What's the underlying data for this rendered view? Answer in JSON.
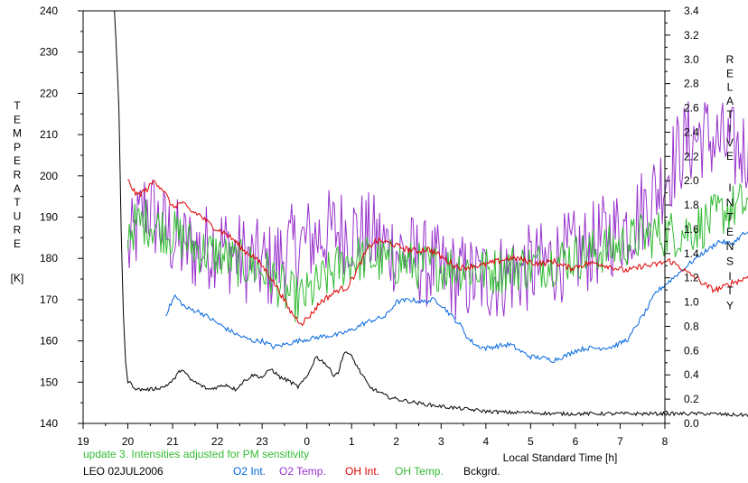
{
  "chart_data": {
    "type": "line",
    "left_axis": {
      "label_letters": [
        "T",
        "E",
        "M",
        "P",
        "E",
        "R",
        "A",
        "T",
        "U",
        "R",
        "E"
      ],
      "unit": "[K]",
      "ylim": [
        140,
        240
      ],
      "ticks": [
        "240",
        "230",
        "220",
        "210",
        "200",
        "190",
        "180",
        "170",
        "160",
        "150",
        "140"
      ]
    },
    "right_axis": {
      "label_letters_1": [
        "R",
        "E",
        "L",
        "A",
        "T",
        "I",
        "V",
        "E"
      ],
      "label_letters_2": [
        "I",
        "N",
        "T",
        "E",
        "N",
        "S",
        "I",
        "T",
        "Y"
      ],
      "ylim": [
        0.0,
        3.4
      ],
      "ticks": [
        "3.4",
        "3.2",
        "3.0",
        "2.8",
        "2.6",
        "2.4",
        "2.2",
        "2.0",
        "1.8",
        "1.6",
        "1.4",
        "1.2",
        "1.0",
        "0.8",
        "0.6",
        "0.4",
        "0.2",
        "0.0"
      ]
    },
    "x_axis": {
      "label": "Local Standard Time [h]",
      "ticks": [
        "19",
        "20",
        "21",
        "22",
        "23",
        "0",
        "1",
        "2",
        "3",
        "4",
        "5",
        "6",
        "7",
        "8"
      ],
      "range_hours_after_19": [
        0,
        13
      ]
    },
    "notes": {
      "update": "update 3. Intensities adjusted for PM sensitivity",
      "station": "LEO 02JUL2006"
    },
    "legend": [
      "O2 Int.",
      "O2 Temp.",
      "OH Int.",
      "OH Temp.",
      "Bckgrd."
    ],
    "series": [
      {
        "name": "O2 Int.",
        "axis": "right",
        "color": "#0066dd",
        "points": [
          [
            20.85,
            0.9
          ],
          [
            21.05,
            1.05
          ],
          [
            21.3,
            0.95
          ],
          [
            21.6,
            0.92
          ],
          [
            21.9,
            0.85
          ],
          [
            22.2,
            0.78
          ],
          [
            22.5,
            0.72
          ],
          [
            22.8,
            0.68
          ],
          [
            23.0,
            0.68
          ],
          [
            23.25,
            0.63
          ],
          [
            23.5,
            0.65
          ],
          [
            23.8,
            0.68
          ],
          [
            24.1,
            0.7
          ],
          [
            24.4,
            0.72
          ],
          [
            24.7,
            0.73
          ],
          [
            25.0,
            0.77
          ],
          [
            25.25,
            0.82
          ],
          [
            25.45,
            0.85
          ],
          [
            25.75,
            0.88
          ],
          [
            26.0,
            1.0
          ],
          [
            26.3,
            1.02
          ],
          [
            26.6,
            1.0
          ],
          [
            26.85,
            1.02
          ],
          [
            27.0,
            0.98
          ],
          [
            27.2,
            0.9
          ],
          [
            27.45,
            0.8
          ],
          [
            27.6,
            0.7
          ],
          [
            27.8,
            0.64
          ],
          [
            28.0,
            0.62
          ],
          [
            28.3,
            0.64
          ],
          [
            28.55,
            0.65
          ],
          [
            28.75,
            0.6
          ],
          [
            29.0,
            0.55
          ],
          [
            29.25,
            0.54
          ],
          [
            29.5,
            0.52
          ],
          [
            29.8,
            0.56
          ],
          [
            30.0,
            0.6
          ],
          [
            30.25,
            0.62
          ],
          [
            30.5,
            0.62
          ],
          [
            30.8,
            0.63
          ],
          [
            31.0,
            0.66
          ],
          [
            31.2,
            0.7
          ],
          [
            31.35,
            0.8
          ],
          [
            31.6,
            0.94
          ],
          [
            31.8,
            1.08
          ],
          [
            32.0,
            1.14
          ],
          [
            32.25,
            1.22
          ],
          [
            32.5,
            1.3
          ],
          [
            32.75,
            1.38
          ],
          [
            33.0,
            1.44
          ],
          [
            33.2,
            1.5
          ],
          [
            33.5,
            1.48
          ],
          [
            33.75,
            1.56
          ],
          [
            34.0,
            1.58
          ],
          [
            34.2,
            1.48
          ],
          [
            34.35,
            1.54
          ],
          [
            34.55,
            1.4
          ]
        ]
      },
      {
        "name": "O2 Temp.",
        "axis": "left",
        "color": "#9933cc",
        "points": [
          [
            20.0,
            181
          ],
          [
            20.4,
            193
          ],
          [
            20.8,
            187
          ],
          [
            21.2,
            183
          ],
          [
            21.6,
            182
          ],
          [
            22.0,
            184
          ],
          [
            22.4,
            181
          ],
          [
            22.8,
            179
          ],
          [
            23.2,
            178
          ],
          [
            23.6,
            182
          ],
          [
            24.0,
            184
          ],
          [
            24.4,
            186
          ],
          [
            24.8,
            187
          ],
          [
            25.2,
            186
          ],
          [
            25.5,
            185
          ],
          [
            25.75,
            183
          ],
          [
            26.0,
            182
          ],
          [
            26.4,
            180
          ],
          [
            26.8,
            178
          ],
          [
            27.2,
            176
          ],
          [
            27.6,
            175
          ],
          [
            28.0,
            175
          ],
          [
            28.4,
            176
          ],
          [
            28.8,
            177
          ],
          [
            29.2,
            178
          ],
          [
            29.6,
            180
          ],
          [
            30.0,
            181
          ],
          [
            30.4,
            183
          ],
          [
            30.8,
            186
          ],
          [
            31.2,
            188
          ],
          [
            31.6,
            193
          ],
          [
            32.0,
            200
          ],
          [
            32.4,
            207
          ],
          [
            32.8,
            210
          ],
          [
            33.2,
            208
          ],
          [
            33.6,
            206
          ],
          [
            34.0,
            207
          ],
          [
            34.4,
            208
          ],
          [
            34.55,
            203
          ]
        ]
      },
      {
        "name": "OH Int.",
        "axis": "right",
        "color": "#dd0000",
        "points": [
          [
            20.0,
            2.0
          ],
          [
            20.2,
            1.88
          ],
          [
            20.4,
            1.92
          ],
          [
            20.6,
            2.0
          ],
          [
            20.8,
            1.92
          ],
          [
            21.0,
            1.78
          ],
          [
            21.2,
            1.82
          ],
          [
            21.4,
            1.75
          ],
          [
            21.6,
            1.72
          ],
          [
            21.8,
            1.65
          ],
          [
            22.0,
            1.6
          ],
          [
            22.2,
            1.56
          ],
          [
            22.4,
            1.5
          ],
          [
            22.6,
            1.42
          ],
          [
            22.8,
            1.38
          ],
          [
            23.0,
            1.3
          ],
          [
            23.2,
            1.2
          ],
          [
            23.4,
            1.08
          ],
          [
            23.6,
            0.94
          ],
          [
            23.8,
            0.85
          ],
          [
            23.9,
            0.83
          ],
          [
            24.1,
            0.9
          ],
          [
            24.3,
            1.0
          ],
          [
            24.5,
            1.05
          ],
          [
            24.7,
            1.1
          ],
          [
            24.9,
            1.12
          ],
          [
            25.1,
            1.25
          ],
          [
            25.3,
            1.4
          ],
          [
            25.5,
            1.5
          ],
          [
            25.7,
            1.5
          ],
          [
            25.9,
            1.48
          ],
          [
            26.1,
            1.45
          ],
          [
            26.3,
            1.43
          ],
          [
            26.5,
            1.42
          ],
          [
            26.7,
            1.44
          ],
          [
            26.9,
            1.4
          ],
          [
            27.1,
            1.35
          ],
          [
            27.3,
            1.3
          ],
          [
            27.5,
            1.28
          ],
          [
            27.7,
            1.3
          ],
          [
            27.9,
            1.3
          ],
          [
            28.1,
            1.32
          ],
          [
            28.3,
            1.34
          ],
          [
            28.5,
            1.36
          ],
          [
            28.7,
            1.36
          ],
          [
            28.9,
            1.34
          ],
          [
            29.1,
            1.32
          ],
          [
            29.3,
            1.32
          ],
          [
            29.5,
            1.34
          ],
          [
            29.7,
            1.3
          ],
          [
            29.9,
            1.28
          ],
          [
            30.1,
            1.3
          ],
          [
            30.3,
            1.32
          ],
          [
            30.5,
            1.32
          ],
          [
            30.7,
            1.3
          ],
          [
            30.9,
            1.28
          ],
          [
            31.1,
            1.26
          ],
          [
            31.3,
            1.27
          ],
          [
            31.5,
            1.3
          ],
          [
            31.7,
            1.3
          ],
          [
            31.9,
            1.32
          ],
          [
            32.1,
            1.34
          ],
          [
            32.3,
            1.3
          ],
          [
            32.5,
            1.24
          ],
          [
            32.7,
            1.2
          ],
          [
            32.9,
            1.14
          ],
          [
            33.1,
            1.1
          ],
          [
            33.3,
            1.12
          ],
          [
            33.5,
            1.16
          ],
          [
            33.7,
            1.18
          ],
          [
            33.9,
            1.22
          ],
          [
            34.1,
            1.24
          ],
          [
            34.3,
            1.26
          ],
          [
            34.55,
            1.24
          ]
        ]
      },
      {
        "name": "OH Temp.",
        "axis": "left",
        "color": "#33bb33",
        "points": [
          [
            20.0,
            187
          ],
          [
            20.4,
            189
          ],
          [
            20.8,
            187
          ],
          [
            21.2,
            185
          ],
          [
            21.6,
            182
          ],
          [
            22.0,
            181
          ],
          [
            22.4,
            179
          ],
          [
            22.8,
            178
          ],
          [
            23.2,
            176
          ],
          [
            23.5,
            172
          ],
          [
            23.8,
            170
          ],
          [
            24.0,
            171
          ],
          [
            24.3,
            174
          ],
          [
            24.6,
            177
          ],
          [
            25.0,
            180
          ],
          [
            25.4,
            180
          ],
          [
            25.8,
            179
          ],
          [
            26.2,
            179
          ],
          [
            26.6,
            178
          ],
          [
            27.0,
            178
          ],
          [
            27.4,
            178
          ],
          [
            27.8,
            177
          ],
          [
            28.2,
            177
          ],
          [
            28.6,
            178
          ],
          [
            29.0,
            178
          ],
          [
            29.4,
            179
          ],
          [
            29.8,
            180
          ],
          [
            30.2,
            181
          ],
          [
            30.6,
            182
          ],
          [
            31.0,
            183
          ],
          [
            31.4,
            185
          ],
          [
            31.8,
            186
          ],
          [
            32.2,
            186
          ],
          [
            32.6,
            187
          ],
          [
            33.0,
            189
          ],
          [
            33.4,
            192
          ],
          [
            33.8,
            193
          ],
          [
            34.2,
            195
          ],
          [
            34.55,
            190
          ]
        ]
      },
      {
        "name": "Bckgrd.",
        "axis": "right",
        "color": "#000000",
        "points": [
          [
            19.7,
            3.45
          ],
          [
            19.8,
            2.6
          ],
          [
            19.85,
            1.6
          ],
          [
            19.9,
            0.9
          ],
          [
            19.95,
            0.5
          ],
          [
            20.0,
            0.35
          ],
          [
            20.2,
            0.28
          ],
          [
            20.5,
            0.28
          ],
          [
            20.8,
            0.3
          ],
          [
            21.0,
            0.35
          ],
          [
            21.2,
            0.45
          ],
          [
            21.4,
            0.36
          ],
          [
            21.6,
            0.32
          ],
          [
            21.8,
            0.28
          ],
          [
            22.0,
            0.3
          ],
          [
            22.2,
            0.32
          ],
          [
            22.4,
            0.28
          ],
          [
            22.6,
            0.35
          ],
          [
            22.8,
            0.4
          ],
          [
            23.0,
            0.38
          ],
          [
            23.2,
            0.45
          ],
          [
            23.4,
            0.38
          ],
          [
            23.6,
            0.35
          ],
          [
            23.8,
            0.3
          ],
          [
            24.0,
            0.38
          ],
          [
            24.2,
            0.55
          ],
          [
            24.4,
            0.5
          ],
          [
            24.6,
            0.4
          ],
          [
            24.7,
            0.42
          ],
          [
            24.85,
            0.6
          ],
          [
            25.0,
            0.55
          ],
          [
            25.2,
            0.42
          ],
          [
            25.4,
            0.3
          ],
          [
            25.6,
            0.26
          ],
          [
            25.8,
            0.22
          ],
          [
            26.0,
            0.2
          ],
          [
            26.3,
            0.18
          ],
          [
            26.6,
            0.16
          ],
          [
            27.0,
            0.14
          ],
          [
            27.5,
            0.12
          ],
          [
            28.0,
            0.1
          ],
          [
            28.5,
            0.09
          ],
          [
            29.0,
            0.09
          ],
          [
            29.5,
            0.08
          ],
          [
            30.0,
            0.08
          ],
          [
            30.5,
            0.08
          ],
          [
            31.0,
            0.08
          ],
          [
            31.5,
            0.08
          ],
          [
            32.0,
            0.08
          ],
          [
            32.5,
            0.08
          ],
          [
            33.0,
            0.08
          ],
          [
            33.5,
            0.07
          ],
          [
            34.0,
            0.07
          ],
          [
            34.25,
            0.08
          ],
          [
            34.4,
            0.12
          ],
          [
            34.5,
            0.2
          ],
          [
            34.55,
            0.3
          ]
        ]
      }
    ]
  }
}
